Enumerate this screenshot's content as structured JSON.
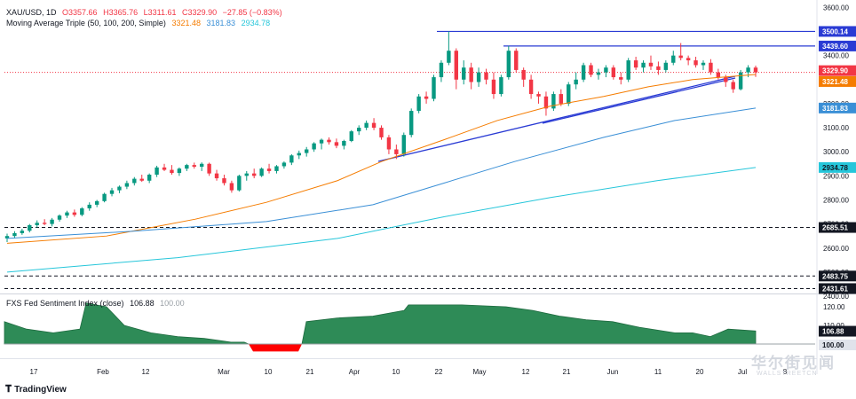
{
  "chart_data": {
    "type": "candlestick",
    "symbol": "XAU/USD, 1D",
    "ohlc_readout": {
      "o": "O3357.66",
      "h": "H3365.76",
      "l": "L3311.61",
      "c": "C3329.90",
      "chg": "−27.85 (−0.83%)"
    },
    "indicator_title": "Moving Average Triple (50, 100, 200, Simple)",
    "ma_values": {
      "ma50": "3321.48",
      "ma100": "3181.83",
      "ma200": "2934.78"
    },
    "colors": {
      "up": "#089981",
      "down": "#f23645",
      "ma50": "#f57c00",
      "ma100": "#3a8fd6",
      "ma200": "#26c6da",
      "trend": "#2a3bd4",
      "level": "#2a3bd4",
      "sent_fill": "#2e8b57",
      "sent_neg": "#ff0000"
    },
    "price_axis_ticks": [
      "3600.00",
      "3500.00",
      "3400.00",
      "3300.00",
      "3200.00",
      "3100.00",
      "3000.00",
      "2900.00",
      "2800.00",
      "2700.00",
      "2600.00",
      "2500.00",
      "2400.00"
    ],
    "x_axis_labels": [
      "17",
      "Feb",
      "12",
      "Mar",
      "10",
      "21",
      "Apr",
      "10",
      "22",
      "May",
      "12",
      "21",
      "Jun",
      "11",
      "20",
      "Jul",
      "8"
    ],
    "levels": [
      {
        "label": "3500.14",
        "value": 3500.14
      },
      {
        "label": "3439.60",
        "value": 3439.6
      },
      {
        "label": "2685.51",
        "value": 2685.51
      },
      {
        "label": "2483.75",
        "value": 2483.75
      },
      {
        "label": "2431.61",
        "value": 2431.61
      }
    ],
    "last_price": {
      "label": "3329.90",
      "value": 3329.9
    },
    "ma_badges": [
      {
        "label": "3321.48",
        "value": 3321.48,
        "key": "ma50"
      },
      {
        "label": "3181.83",
        "value": 3181.83,
        "key": "ma100"
      },
      {
        "label": "2934.78",
        "value": 2934.78,
        "key": "ma200"
      }
    ],
    "sentiment": {
      "title": "FXS Fed Sentiment Index (close)",
      "value": "106.88",
      "ref": "100.00",
      "ticks": [
        "120.00",
        "110.00",
        "100.00"
      ],
      "badge_value": "106.88",
      "badge_ref": "100.00"
    }
  },
  "branding": {
    "tradingview": "TradingView",
    "watermark": "华尔街见闻",
    "watermark_sub": "WALLSTREETCN"
  }
}
